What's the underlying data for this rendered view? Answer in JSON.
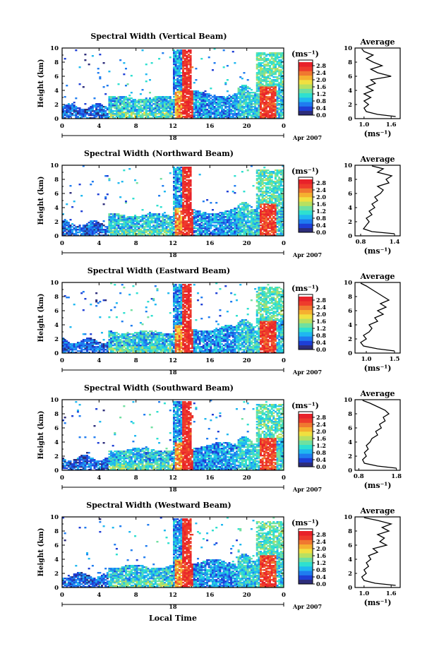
{
  "xlabel": "Local Time",
  "x_ticks": [
    "0",
    "4",
    "8",
    "12",
    "16",
    "20",
    "0"
  ],
  "date_label": "18",
  "month_label": "Apr 2007",
  "colorbar": {
    "unit": "(ms⁻¹)",
    "ticks": [
      "2.8",
      "2.4",
      "2.0",
      "1.6",
      "1.2",
      "0.8",
      "0.4",
      "0.0"
    ],
    "colors": [
      "#2d2d7a",
      "#1e3fd6",
      "#1f7cf0",
      "#1fb8f0",
      "#2ee0d0",
      "#6fe0a0",
      "#b8e060",
      "#f0e040",
      "#f5b030",
      "#f07830",
      "#ee3b2c",
      "#e8222a"
    ]
  },
  "chart_data": [
    {
      "type": "heatmap",
      "title": "Spectral Width (Vertical Beam)",
      "ylabel": "Height (km)",
      "y_ticks": [
        "0",
        "2",
        "4",
        "6",
        "8",
        "10"
      ],
      "xlim": [
        0,
        24
      ],
      "ylim": [
        0,
        10
      ],
      "avg": {
        "title": "Average",
        "unit": "(ms⁻¹)",
        "ticks": [
          "1.0",
          "1.6"
        ],
        "xlim": [
          0.8,
          1.8
        ],
        "profile": [
          [
            1.7,
            0.3
          ],
          [
            1.3,
            0.6
          ],
          [
            1.05,
            1.0
          ],
          [
            1.0,
            1.5
          ],
          [
            1.1,
            2.0
          ],
          [
            1.0,
            2.5
          ],
          [
            1.15,
            3.0
          ],
          [
            1.0,
            3.5
          ],
          [
            1.2,
            4.0
          ],
          [
            1.05,
            4.5
          ],
          [
            1.25,
            5.0
          ],
          [
            1.15,
            5.5
          ],
          [
            1.6,
            6.0
          ],
          [
            1.3,
            6.5
          ],
          [
            1.15,
            7.0
          ],
          [
            1.4,
            7.5
          ],
          [
            1.2,
            8.0
          ],
          [
            1.05,
            8.5
          ],
          [
            1.2,
            9.0
          ],
          [
            1.0,
            9.5
          ],
          [
            0.95,
            9.9
          ]
        ]
      }
    },
    {
      "type": "heatmap",
      "title": "Spectral Width (Northward Beam)",
      "ylabel": "Height (km)",
      "y_ticks": [
        "0",
        "2",
        "4",
        "6",
        "8",
        "10"
      ],
      "xlim": [
        0,
        24
      ],
      "ylim": [
        0,
        10
      ],
      "avg": {
        "title": "Average",
        "unit": "(ms⁻¹)",
        "ticks": [
          "0.8",
          "1.4"
        ],
        "xlim": [
          0.7,
          1.5
        ],
        "profile": [
          [
            1.4,
            0.3
          ],
          [
            1.0,
            0.6
          ],
          [
            0.85,
            1.0
          ],
          [
            0.9,
            1.5
          ],
          [
            0.95,
            2.0
          ],
          [
            0.9,
            2.5
          ],
          [
            1.0,
            3.0
          ],
          [
            0.95,
            3.5
          ],
          [
            1.05,
            4.0
          ],
          [
            1.0,
            4.5
          ],
          [
            1.1,
            5.0
          ],
          [
            1.05,
            5.5
          ],
          [
            1.15,
            6.0
          ],
          [
            1.2,
            6.5
          ],
          [
            1.1,
            7.0
          ],
          [
            1.3,
            7.5
          ],
          [
            1.25,
            8.0
          ],
          [
            1.35,
            8.5
          ],
          [
            1.1,
            9.0
          ],
          [
            1.2,
            9.5
          ],
          [
            1.0,
            9.9
          ]
        ]
      }
    },
    {
      "type": "heatmap",
      "title": "Spectral Width (Eastward Beam)",
      "ylabel": "Height (km)",
      "y_ticks": [
        "0",
        "2",
        "4",
        "6",
        "8",
        "10"
      ],
      "xlim": [
        0,
        24
      ],
      "ylim": [
        0,
        10
      ],
      "avg": {
        "title": "Average",
        "unit": "(ms⁻¹)",
        "ticks": [
          "1.0",
          "1.5"
        ],
        "xlim": [
          0.8,
          1.6
        ],
        "profile": [
          [
            1.5,
            0.3
          ],
          [
            1.2,
            0.6
          ],
          [
            0.95,
            1.0
          ],
          [
            0.9,
            1.5
          ],
          [
            1.0,
            2.0
          ],
          [
            0.95,
            2.5
          ],
          [
            1.05,
            3.0
          ],
          [
            1.1,
            3.5
          ],
          [
            1.05,
            4.0
          ],
          [
            1.2,
            4.5
          ],
          [
            1.15,
            5.0
          ],
          [
            1.3,
            5.5
          ],
          [
            1.2,
            6.0
          ],
          [
            1.35,
            6.5
          ],
          [
            1.25,
            7.0
          ],
          [
            1.4,
            7.5
          ],
          [
            1.3,
            8.0
          ],
          [
            1.2,
            8.5
          ],
          [
            1.1,
            9.0
          ],
          [
            1.0,
            9.5
          ],
          [
            0.9,
            9.9
          ]
        ]
      }
    },
    {
      "type": "heatmap",
      "title": "Spectral Width (Southward Beam)",
      "ylabel": "Height (km)",
      "y_ticks": [
        "0",
        "2",
        "4",
        "6",
        "8",
        "10"
      ],
      "xlim": [
        0,
        24
      ],
      "ylim": [
        0,
        10
      ],
      "avg": {
        "title": "Average",
        "unit": "(ms⁻¹)",
        "ticks": [
          "0.8",
          "1.8"
        ],
        "xlim": [
          0.7,
          1.9
        ],
        "profile": [
          [
            1.8,
            0.3
          ],
          [
            1.3,
            0.6
          ],
          [
            0.95,
            1.0
          ],
          [
            0.9,
            1.5
          ],
          [
            1.0,
            2.0
          ],
          [
            0.95,
            2.5
          ],
          [
            1.05,
            3.0
          ],
          [
            1.0,
            3.5
          ],
          [
            1.1,
            4.0
          ],
          [
            1.15,
            4.5
          ],
          [
            1.3,
            5.0
          ],
          [
            1.25,
            5.5
          ],
          [
            1.4,
            6.0
          ],
          [
            1.35,
            6.5
          ],
          [
            1.5,
            7.0
          ],
          [
            1.45,
            7.5
          ],
          [
            1.6,
            8.0
          ],
          [
            1.5,
            8.5
          ],
          [
            1.3,
            9.0
          ],
          [
            1.1,
            9.5
          ],
          [
            0.9,
            9.9
          ]
        ]
      }
    },
    {
      "type": "heatmap",
      "title": "Spectral Width (Westward Beam)",
      "ylabel": "Height (km)",
      "y_ticks": [
        "0",
        "2",
        "4",
        "6",
        "8",
        "10"
      ],
      "xlim": [
        0,
        24
      ],
      "ylim": [
        0,
        10
      ],
      "avg": {
        "title": "Average",
        "unit": "(ms⁻¹)",
        "ticks": [
          "1.0",
          "1.6"
        ],
        "xlim": [
          0.8,
          1.8
        ],
        "profile": [
          [
            1.7,
            0.3
          ],
          [
            1.25,
            0.6
          ],
          [
            1.0,
            1.0
          ],
          [
            0.95,
            1.5
          ],
          [
            1.05,
            2.0
          ],
          [
            1.0,
            2.5
          ],
          [
            1.1,
            3.0
          ],
          [
            1.05,
            3.5
          ],
          [
            1.15,
            4.0
          ],
          [
            1.1,
            4.5
          ],
          [
            1.3,
            5.0
          ],
          [
            1.2,
            5.5
          ],
          [
            1.5,
            6.0
          ],
          [
            1.35,
            6.5
          ],
          [
            1.45,
            7.0
          ],
          [
            1.3,
            7.5
          ],
          [
            1.55,
            8.0
          ],
          [
            1.4,
            8.5
          ],
          [
            1.6,
            9.0
          ],
          [
            1.3,
            9.5
          ],
          [
            1.0,
            9.9
          ]
        ]
      }
    }
  ]
}
